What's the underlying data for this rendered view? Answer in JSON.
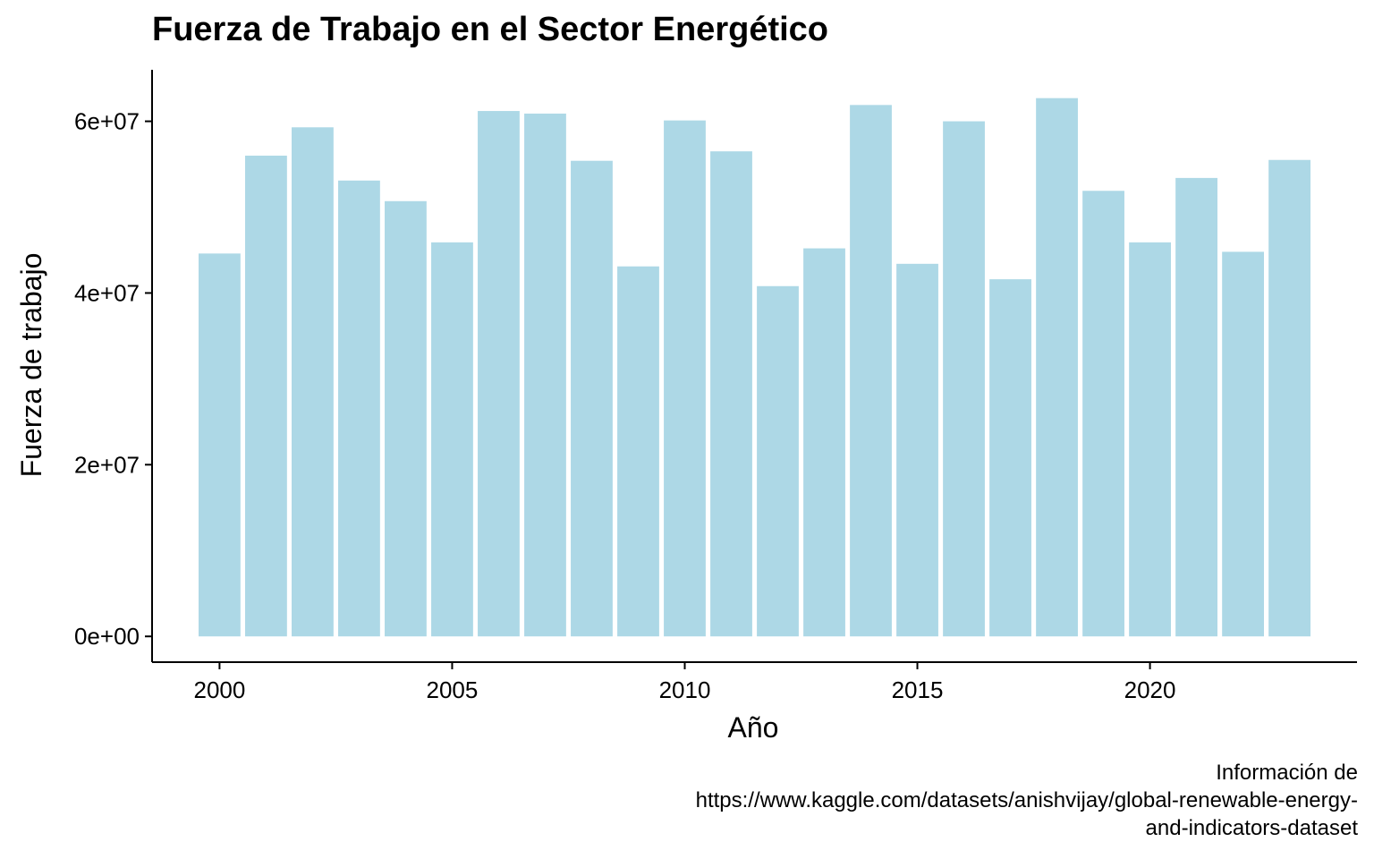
{
  "chart_data": {
    "type": "bar",
    "title": "Fuerza de Trabajo en el Sector Energético",
    "xlabel": "Año",
    "ylabel": "Fuerza de trabajo",
    "caption": [
      "Información de",
      "https://www.kaggle.com/datasets/anishvijay/global-renewable-energy-",
      "and-indicators-dataset"
    ],
    "categories": [
      2000,
      2001,
      2002,
      2003,
      2004,
      2005,
      2006,
      2007,
      2008,
      2009,
      2010,
      2011,
      2012,
      2013,
      2014,
      2015,
      2016,
      2017,
      2018,
      2019,
      2020,
      2021,
      2022,
      2023
    ],
    "values": [
      44600000,
      56000000,
      59300000,
      53100000,
      50700000,
      45900000,
      61200000,
      60900000,
      55400000,
      43100000,
      60100000,
      56500000,
      40800000,
      45200000,
      61900000,
      43400000,
      60000000,
      41600000,
      62700000,
      51900000,
      45900000,
      53400000,
      44800000,
      55500000
    ],
    "x_ticks": [
      2000,
      2005,
      2010,
      2015,
      2020
    ],
    "x_tick_labels": [
      "2000",
      "2005",
      "2010",
      "2015",
      "2020"
    ],
    "y_ticks": [
      0,
      20000000,
      40000000,
      60000000
    ],
    "y_tick_labels": [
      "0e+00",
      "2e+07",
      "4e+07",
      "6e+07"
    ],
    "xlim": [
      1998.55,
      2024.45
    ],
    "ylim": [
      -3000000,
      66000000
    ],
    "bar_color": "#ADD8E6",
    "grid": false,
    "legend": "none"
  }
}
